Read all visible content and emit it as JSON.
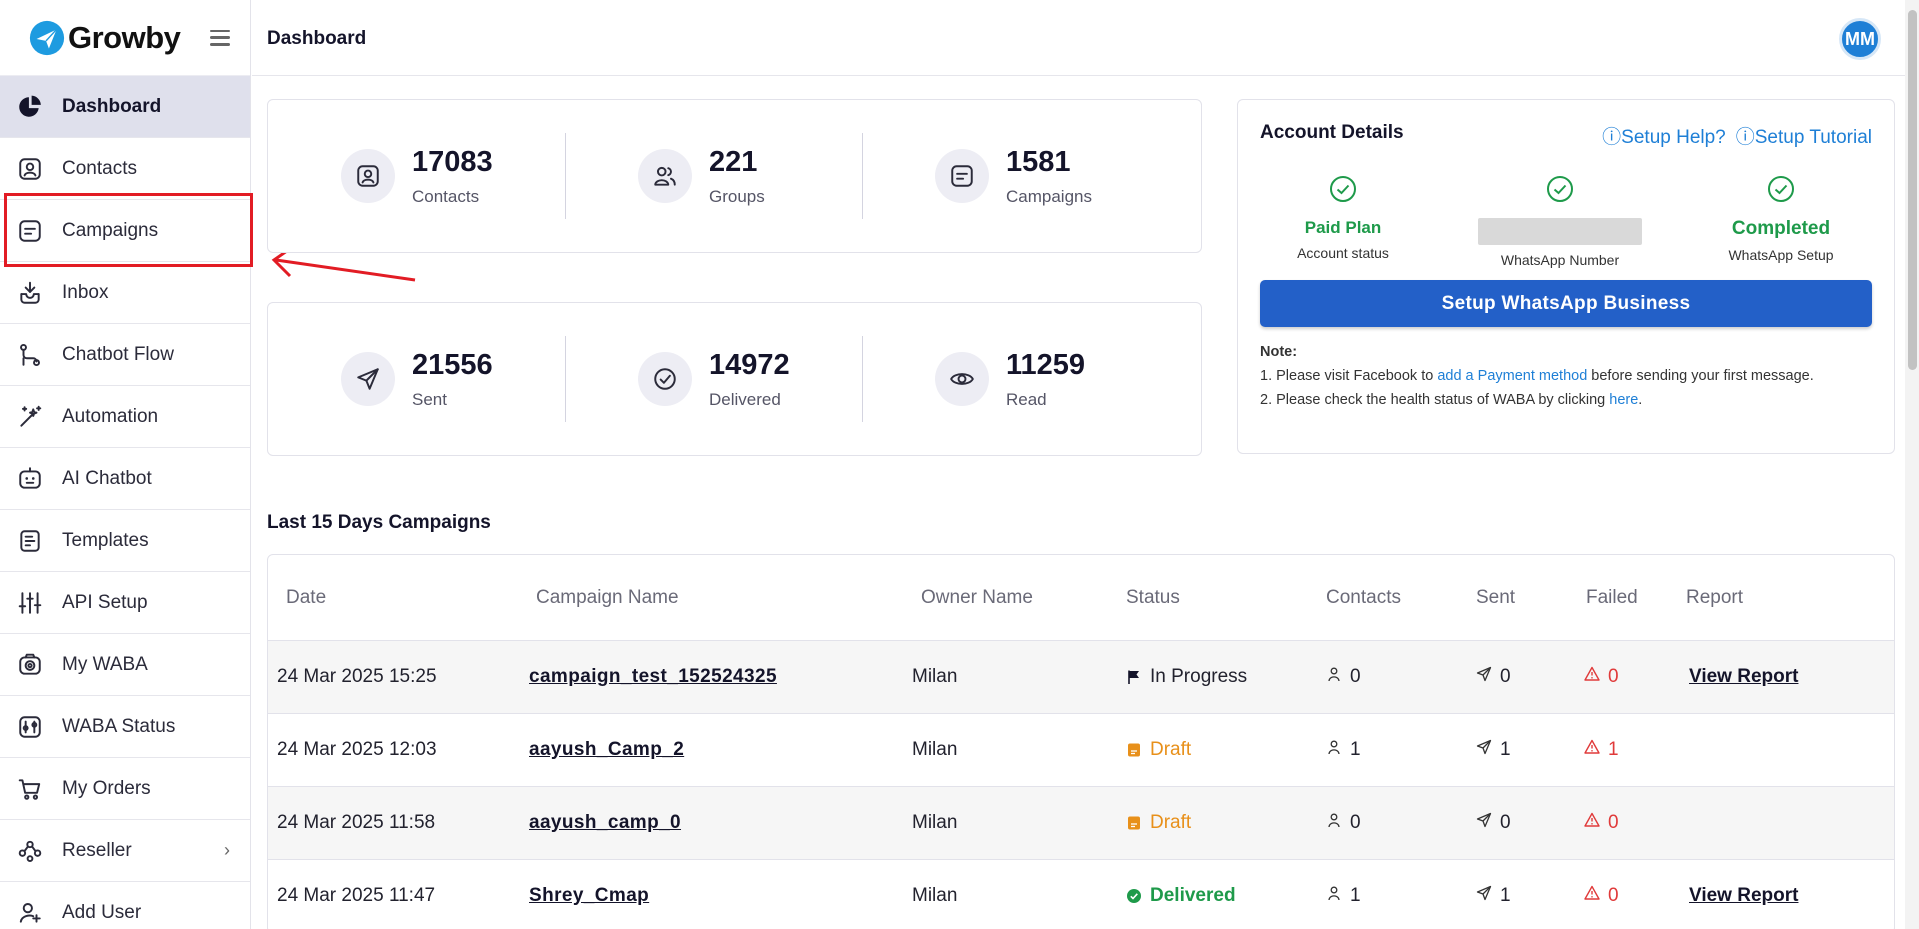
{
  "brand": {
    "name": "Growby"
  },
  "sidebar": {
    "items": [
      {
        "label": "Dashboard",
        "icon": "pie-chart-icon"
      },
      {
        "label": "Contacts",
        "icon": "contact-icon"
      },
      {
        "label": "Campaigns",
        "icon": "campaign-icon"
      },
      {
        "label": "Inbox",
        "icon": "inbox-icon"
      },
      {
        "label": "Chatbot Flow",
        "icon": "flow-icon"
      },
      {
        "label": "Automation",
        "icon": "magic-wand-icon"
      },
      {
        "label": "AI Chatbot",
        "icon": "bot-icon"
      },
      {
        "label": "Templates",
        "icon": "template-icon"
      },
      {
        "label": "API Setup",
        "icon": "sliders-icon"
      },
      {
        "label": "My WABA",
        "icon": "waba-icon"
      },
      {
        "label": "WABA Status",
        "icon": "waba-status-icon"
      },
      {
        "label": "My Orders",
        "icon": "cart-icon"
      },
      {
        "label": "Reseller",
        "icon": "reseller-icon"
      },
      {
        "label": "Add User",
        "icon": "add-user-icon"
      }
    ]
  },
  "header": {
    "title": "Dashboard",
    "avatar_initials": "MM"
  },
  "stats_top": [
    {
      "value": "17083",
      "label": "Contacts",
      "icon": "contact-icon"
    },
    {
      "value": "221",
      "label": "Groups",
      "icon": "groups-icon"
    },
    {
      "value": "1581",
      "label": "Campaigns",
      "icon": "campaign-icon"
    }
  ],
  "stats_bottom": [
    {
      "value": "21556",
      "label": "Sent",
      "icon": "send-icon"
    },
    {
      "value": "14972",
      "label": "Delivered",
      "icon": "check-circle-icon"
    },
    {
      "value": "11259",
      "label": "Read",
      "icon": "eye-icon"
    }
  ],
  "account": {
    "title": "Account Details",
    "setup_help": "ⓘSetup Help?",
    "setup_tutorial": "ⓘSetup Tutorial",
    "plan_status": "Paid Plan",
    "plan_label": "Account status",
    "number_label": "WhatsApp Number",
    "setup_status": "Completed",
    "setup_label": "WhatsApp Setup",
    "button": "Setup WhatsApp Business",
    "note_title": "Note:",
    "note1_pre": "1. Please visit Facebook to ",
    "note1_link": "add a Payment method",
    "note1_post": " before sending your first message.",
    "note2_pre": "2. Please check the health status of WABA by clicking ",
    "note2_link": "here",
    "note2_post": "."
  },
  "campaigns": {
    "title": "Last 15 Days Campaigns",
    "columns": [
      "Date",
      "Campaign Name",
      "Owner Name",
      "Status",
      "Contacts",
      "Sent",
      "Failed",
      "Report"
    ],
    "rows": [
      {
        "date": "24 Mar 2025 15:25",
        "name": "campaign_test_152524325",
        "owner": "Milan",
        "status": "In Progress",
        "status_type": "progress",
        "contacts": "0",
        "sent": "0",
        "failed": "0",
        "report": "View Report"
      },
      {
        "date": "24 Mar 2025 12:03",
        "name": "aayush_Camp_2",
        "owner": "Milan",
        "status": "Draft",
        "status_type": "draft",
        "contacts": "1",
        "sent": "1",
        "failed": "1",
        "report": ""
      },
      {
        "date": "24 Mar 2025 11:58",
        "name": "aayush_camp_0",
        "owner": "Milan",
        "status": "Draft",
        "status_type": "draft",
        "contacts": "0",
        "sent": "0",
        "failed": "0",
        "report": ""
      },
      {
        "date": "24 Mar 2025 11:47",
        "name": "Shrey_Cmap",
        "owner": "Milan",
        "status": "Delivered",
        "status_type": "delivered",
        "contacts": "1",
        "sent": "1",
        "failed": "0",
        "report": "View Report"
      }
    ]
  },
  "colors": {
    "accent": "#2360c8",
    "link": "#1e7fd6",
    "success": "#1e9a4a",
    "draft": "#e8901a",
    "danger": "#e03a3a",
    "annotation": "#e21c24"
  }
}
